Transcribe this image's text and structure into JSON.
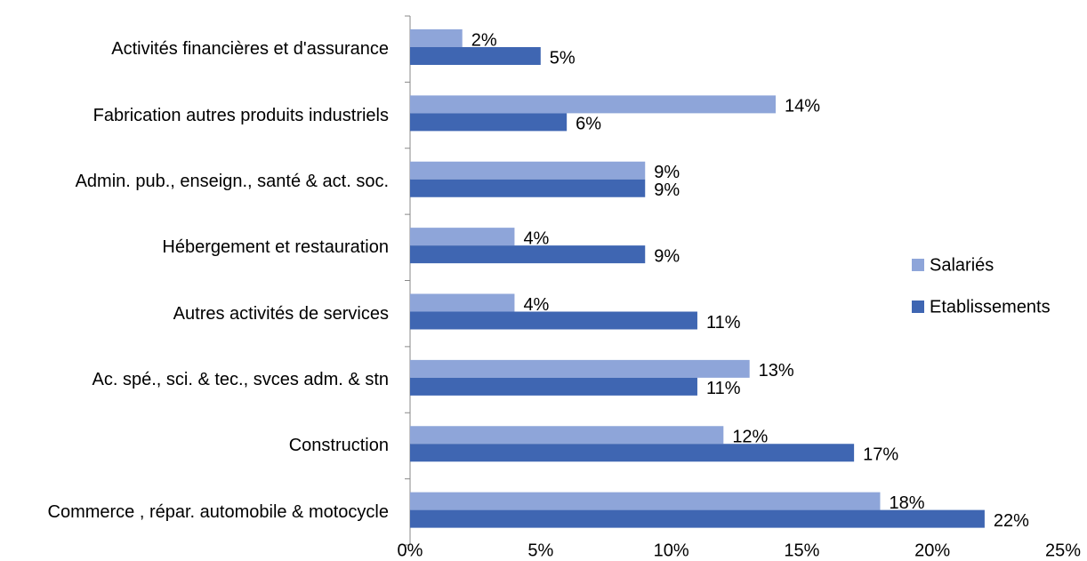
{
  "chart_data": {
    "type": "bar",
    "orientation": "horizontal",
    "categories": [
      "Activités financières et d'assurance",
      "Fabrication autres produits industriels",
      "Admin. pub., enseign., santé & act. soc.",
      "Hébergement et restauration",
      "Autres activités de services",
      "Ac. spé., sci. & tec., svces adm. & stn",
      "Construction",
      "Commerce , répar. automobile & motocycle"
    ],
    "series": [
      {
        "name": "Salariés",
        "color": "#8ea5d9",
        "values": [
          2,
          14,
          9,
          4,
          4,
          13,
          12,
          18
        ],
        "value_labels": [
          "2%",
          "14%",
          "9%",
          "4%",
          "4%",
          "13%",
          "12%",
          "18%"
        ]
      },
      {
        "name": "Etablissements",
        "color": "#3f66b2",
        "values": [
          5,
          6,
          9,
          9,
          11,
          11,
          17,
          22
        ],
        "value_labels": [
          "5%",
          "6%",
          "9%",
          "9%",
          "11%",
          "11%",
          "17%",
          "22%"
        ]
      }
    ],
    "xlim": [
      0,
      25
    ],
    "xticks": [
      {
        "value": 0,
        "label": "0%"
      },
      {
        "value": 5,
        "label": "5%"
      },
      {
        "value": 10,
        "label": "10%"
      },
      {
        "value": 15,
        "label": "15%"
      },
      {
        "value": 20,
        "label": "20%"
      },
      {
        "value": 25,
        "label": "25%"
      }
    ],
    "legend": "right"
  }
}
